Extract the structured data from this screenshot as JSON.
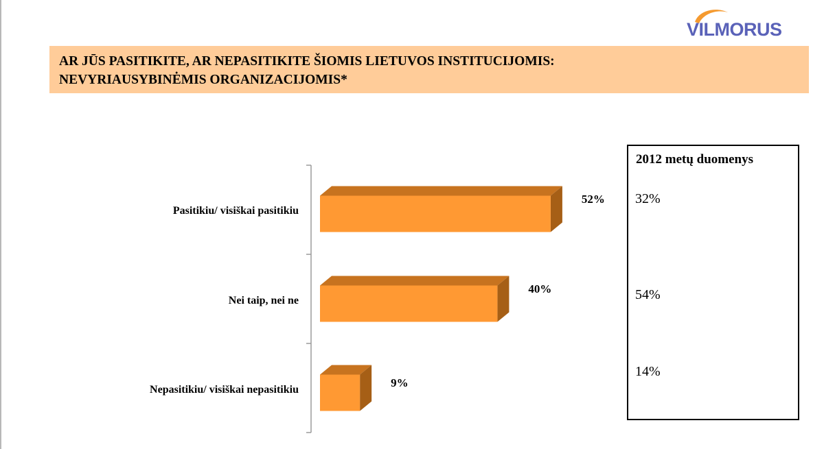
{
  "logo": {
    "text": "VILMORUS",
    "swoosh_color": "#f59a2f",
    "text_color": "#5a62b8"
  },
  "title": {
    "line1": "AR JŪS PASITIKITE, AR NEPASITIKITE ŠIOMIS LIETUVOS INSTITUCIJOMIS:",
    "line2": "NEVYRIAUSYBINĖMIS ORGANIZACIJOMIS*",
    "band_color": "#ffcc99"
  },
  "chart_data": {
    "type": "bar",
    "orientation": "horizontal",
    "style": "3d",
    "categories": [
      "Pasitikiu/ visiškai pasitikiu",
      "Nei taip, nei ne",
      "Nepasitikiu/ visiškai nepasitikiu"
    ],
    "values": [
      52,
      40,
      9
    ],
    "value_labels": [
      "52%",
      "40%",
      "9%"
    ],
    "xlim": [
      0,
      100
    ],
    "grid": false,
    "legend": "none",
    "bar_color": "#ff9933",
    "bar_top_color": "#c7731f",
    "bar_side_color": "#a65f16"
  },
  "side_panel": {
    "title": "2012 metų duomenys",
    "values": [
      "32%",
      "54%",
      "14%"
    ]
  }
}
